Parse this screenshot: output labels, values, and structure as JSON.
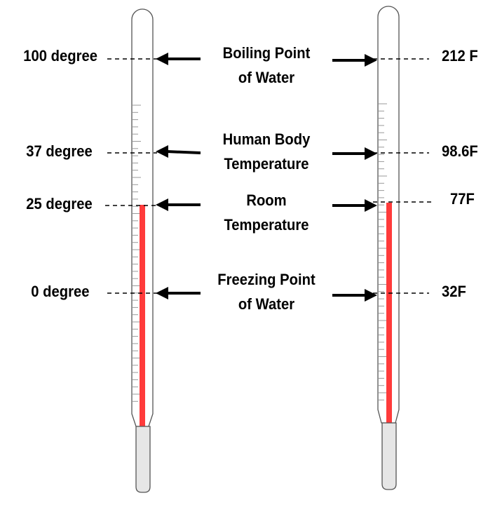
{
  "diagram": {
    "left_labels": [
      "100 degree",
      "37 degree",
      "25 degree",
      "0 degree"
    ],
    "right_labels": [
      "212 F",
      "98.6F",
      "77F",
      "32F"
    ],
    "center_labels": [
      [
        "Boiling Point",
        "of Water"
      ],
      [
        "Human Body",
        "Temperature"
      ],
      [
        "Room",
        "Temperature"
      ],
      [
        "Freezing Point",
        "of Water"
      ]
    ],
    "colors": {
      "mercury": "#ff3b3b",
      "bulb": "#e6e6e6",
      "tube_outline": "#555555",
      "ticks": "#999999",
      "text": "#000000"
    }
  }
}
